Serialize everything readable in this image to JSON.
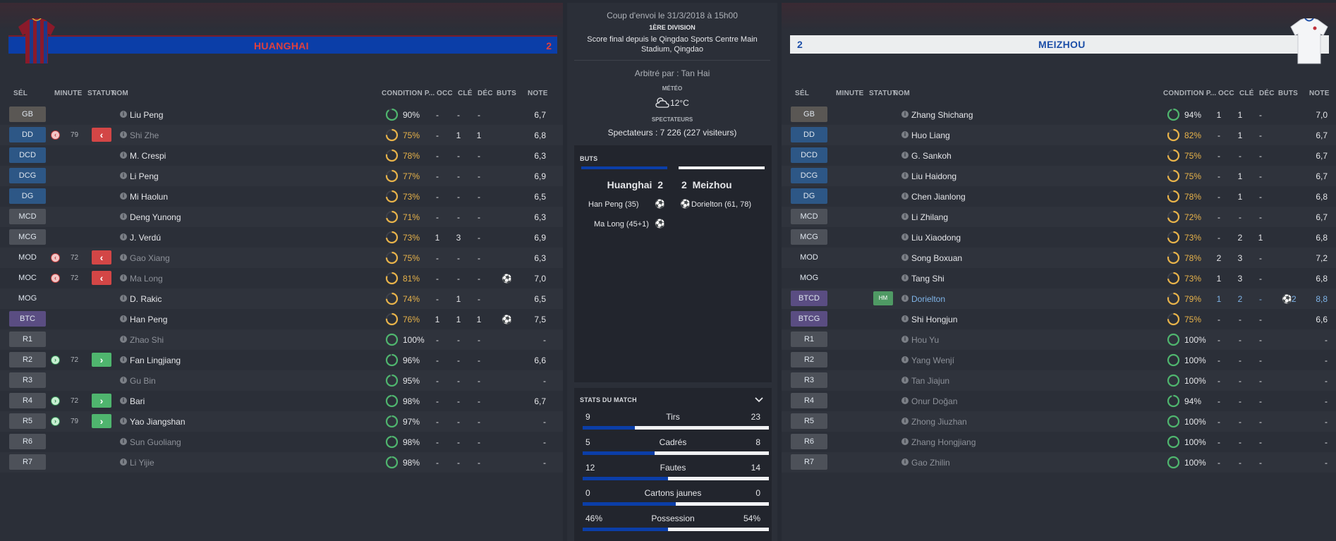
{
  "home": {
    "name": "HUANGHAI",
    "score": "2",
    "colors": {
      "bar": "#0b3ea8",
      "name": "#e0403d"
    },
    "columns": {
      "sel": "SÉL",
      "minute": "MINUTE",
      "statut": "STATUT",
      "nom": "NOM",
      "condition": "CONDITION P...",
      "occ": "OCC",
      "cle": "CLÉ",
      "dec": "DÉC",
      "buts": "BUTS",
      "note": "NOTE"
    },
    "players": [
      {
        "pos": "GB",
        "type": "gk",
        "name": "Liu Peng",
        "dim": false,
        "cond": "90%",
        "occ": "-",
        "cle": "-",
        "dec": "-",
        "buts": "",
        "note": "6,7"
      },
      {
        "pos": "DD",
        "type": "def",
        "name": "Shi Zhe",
        "dim": true,
        "sub": "off",
        "minute": "79",
        "cond": "75%",
        "occ": "-",
        "cle": "1",
        "dec": "1",
        "buts": "",
        "note": "6,8"
      },
      {
        "pos": "DCD",
        "type": "def",
        "name": "M. Crespi",
        "dim": false,
        "cond": "78%",
        "occ": "-",
        "cle": "-",
        "dec": "-",
        "buts": "",
        "note": "6,3"
      },
      {
        "pos": "DCG",
        "type": "def",
        "name": "Li Peng",
        "dim": false,
        "cond": "77%",
        "occ": "-",
        "cle": "-",
        "dec": "-",
        "buts": "",
        "note": "6,9"
      },
      {
        "pos": "DG",
        "type": "def",
        "name": "Mi Haolun",
        "dim": false,
        "cond": "73%",
        "occ": "-",
        "cle": "-",
        "dec": "-",
        "buts": "",
        "note": "6,5"
      },
      {
        "pos": "MCD",
        "type": "mid",
        "name": "Deng Yunong",
        "dim": false,
        "cond": "71%",
        "occ": "-",
        "cle": "-",
        "dec": "-",
        "buts": "",
        "note": "6,3"
      },
      {
        "pos": "MCG",
        "type": "mid",
        "name": "J. Verdú",
        "dim": false,
        "cond": "73%",
        "occ": "1",
        "cle": "3",
        "dec": "-",
        "buts": "",
        "note": "6,9"
      },
      {
        "pos": "MOD",
        "type": "none",
        "name": "Gao Xiang",
        "dim": true,
        "sub": "off",
        "minute": "72",
        "cond": "75%",
        "occ": "-",
        "cle": "-",
        "dec": "-",
        "buts": "",
        "note": "6,3"
      },
      {
        "pos": "MOC",
        "type": "none",
        "name": "Ma Long",
        "dim": true,
        "sub": "off",
        "minute": "72",
        "cond": "81%",
        "occ": "-",
        "cle": "-",
        "dec": "-",
        "buts": "ball",
        "note": "7,0"
      },
      {
        "pos": "MOG",
        "type": "none",
        "name": "D. Rakic",
        "dim": false,
        "cond": "74%",
        "occ": "-",
        "cle": "1",
        "dec": "-",
        "buts": "",
        "note": "6,5"
      },
      {
        "pos": "BTC",
        "type": "att",
        "name": "Han Peng",
        "dim": false,
        "cond": "76%",
        "occ": "1",
        "cle": "1",
        "dec": "1",
        "buts": "ball",
        "note": "7,5"
      },
      {
        "pos": "R1",
        "type": "res",
        "name": "Zhao Shi",
        "dim": true,
        "cond": "100%",
        "occ": "-",
        "cle": "-",
        "dec": "-",
        "buts": "",
        "note": "-"
      },
      {
        "pos": "R2",
        "type": "res",
        "name": "Fan Lingjiang",
        "dim": false,
        "sub": "on",
        "minute": "72",
        "cond": "96%",
        "occ": "-",
        "cle": "-",
        "dec": "-",
        "buts": "",
        "note": "6,6"
      },
      {
        "pos": "R3",
        "type": "res",
        "name": "Gu Bin",
        "dim": true,
        "cond": "95%",
        "occ": "-",
        "cle": "-",
        "dec": "-",
        "buts": "",
        "note": "-"
      },
      {
        "pos": "R4",
        "type": "res",
        "name": "Bari",
        "dim": false,
        "sub": "on",
        "minute": "72",
        "cond": "98%",
        "occ": "-",
        "cle": "-",
        "dec": "-",
        "buts": "",
        "note": "6,7"
      },
      {
        "pos": "R5",
        "type": "res",
        "name": "Yao Jiangshan",
        "dim": false,
        "sub": "on",
        "minute": "79",
        "cond": "97%",
        "occ": "-",
        "cle": "-",
        "dec": "-",
        "buts": "",
        "note": "-"
      },
      {
        "pos": "R6",
        "type": "res",
        "name": "Sun Guoliang",
        "dim": true,
        "cond": "98%",
        "occ": "-",
        "cle": "-",
        "dec": "-",
        "buts": "",
        "note": "-"
      },
      {
        "pos": "R7",
        "type": "res",
        "name": "Li Yijie",
        "dim": true,
        "cond": "98%",
        "occ": "-",
        "cle": "-",
        "dec": "-",
        "buts": "",
        "note": "-"
      }
    ]
  },
  "away": {
    "name": "MEIZHOU",
    "score": "2",
    "colors": {
      "bar": "#eceeef",
      "name": "#1d4fa8"
    },
    "columns": {
      "sel": "SÉL",
      "minute": "MINUTE",
      "statut": "STATUT",
      "nom": "NOM",
      "condition": "CONDITION P...",
      "occ": "OCC",
      "cle": "CLÉ",
      "dec": "DÉC",
      "buts": "BUTS",
      "note": "NOTE"
    },
    "players": [
      {
        "pos": "GB",
        "type": "gk",
        "name": "Zhang Shichang",
        "dim": false,
        "cond": "94%",
        "occ": "1",
        "cle": "1",
        "dec": "-",
        "buts": "",
        "note": "7,0"
      },
      {
        "pos": "DD",
        "type": "def",
        "name": "Huo Liang",
        "dim": false,
        "cond": "82%",
        "occ": "-",
        "cle": "1",
        "dec": "-",
        "buts": "",
        "note": "6,7"
      },
      {
        "pos": "DCD",
        "type": "def",
        "name": "G. Sankoh",
        "dim": false,
        "cond": "75%",
        "occ": "-",
        "cle": "-",
        "dec": "-",
        "buts": "",
        "note": "6,7"
      },
      {
        "pos": "DCG",
        "type": "def",
        "name": "Liu Haidong",
        "dim": false,
        "cond": "75%",
        "occ": "-",
        "cle": "1",
        "dec": "-",
        "buts": "",
        "note": "6,7"
      },
      {
        "pos": "DG",
        "type": "def",
        "name": "Chen Jianlong",
        "dim": false,
        "cond": "78%",
        "occ": "-",
        "cle": "1",
        "dec": "-",
        "buts": "",
        "note": "6,8"
      },
      {
        "pos": "MCD",
        "type": "mid",
        "name": "Li Zhilang",
        "dim": false,
        "cond": "72%",
        "occ": "-",
        "cle": "-",
        "dec": "-",
        "buts": "",
        "note": "6,7"
      },
      {
        "pos": "MCG",
        "type": "mid",
        "name": "Liu Xiaodong",
        "dim": false,
        "cond": "73%",
        "occ": "-",
        "cle": "2",
        "dec": "1",
        "buts": "",
        "note": "6,8"
      },
      {
        "pos": "MOD",
        "type": "none",
        "name": "Song Boxuan",
        "dim": false,
        "cond": "78%",
        "occ": "2",
        "cle": "3",
        "dec": "-",
        "buts": "",
        "note": "7,2"
      },
      {
        "pos": "MOG",
        "type": "none",
        "name": "Tang Shi",
        "dim": false,
        "cond": "73%",
        "occ": "1",
        "cle": "3",
        "dec": "-",
        "buts": "",
        "note": "6,8"
      },
      {
        "pos": "BTCD",
        "type": "att",
        "name": "Dorielton",
        "dim": false,
        "hl": true,
        "hm": "HM",
        "cond": "79%",
        "occ": "1",
        "cle": "2",
        "dec": "-",
        "buts": "ball2",
        "buts_count": "2",
        "note": "8,8"
      },
      {
        "pos": "BTCG",
        "type": "att",
        "name": "Shi Hongjun",
        "dim": false,
        "cond": "75%",
        "occ": "-",
        "cle": "-",
        "dec": "-",
        "buts": "",
        "note": "6,6"
      },
      {
        "pos": "R1",
        "type": "res",
        "name": "Hou Yu",
        "dim": true,
        "cond": "100%",
        "occ": "-",
        "cle": "-",
        "dec": "-",
        "buts": "",
        "note": "-"
      },
      {
        "pos": "R2",
        "type": "res",
        "name": "Yang Wenjí",
        "dim": true,
        "cond": "100%",
        "occ": "-",
        "cle": "-",
        "dec": "-",
        "buts": "",
        "note": "-"
      },
      {
        "pos": "R3",
        "type": "res",
        "name": "Tan Jiajun",
        "dim": true,
        "cond": "100%",
        "occ": "-",
        "cle": "-",
        "dec": "-",
        "buts": "",
        "note": "-"
      },
      {
        "pos": "R4",
        "type": "res",
        "name": "Onur Doğan",
        "dim": true,
        "cond": "94%",
        "occ": "-",
        "cle": "-",
        "dec": "-",
        "buts": "",
        "note": "-"
      },
      {
        "pos": "R5",
        "type": "res",
        "name": "Zhong Jiuzhan",
        "dim": true,
        "cond": "100%",
        "occ": "-",
        "cle": "-",
        "dec": "-",
        "buts": "",
        "note": "-"
      },
      {
        "pos": "R6",
        "type": "res",
        "name": "Zhang Hongjiang",
        "dim": true,
        "cond": "100%",
        "occ": "-",
        "cle": "-",
        "dec": "-",
        "buts": "",
        "note": "-"
      },
      {
        "pos": "R7",
        "type": "res",
        "name": "Gao Zhilin",
        "dim": true,
        "cond": "100%",
        "occ": "-",
        "cle": "-",
        "dec": "-",
        "buts": "",
        "note": "-"
      }
    ]
  },
  "center": {
    "kickoff": "Coup d'envoi le 31/3/2018 à 15h00",
    "division": "1ÈRE DIVISION",
    "venue": "Score final depuis le Qingdao Sports Centre Main Stadium, Qingdao",
    "referee": "Arbitré par : Tan Hai",
    "weather_label": "MÉTÉO",
    "weather_value": "12°C",
    "weather_icon": "partly-cloudy-icon",
    "spectators_label": "SPECTATEURS",
    "spectators_value": "Spectateurs : 7 226 (227 visiteurs)"
  },
  "goals": {
    "heading": "BUTS",
    "home_team": "Huanghai",
    "home_score": "2",
    "away_team": "Meizhou",
    "away_score": "2",
    "home_scorers": [
      "Han Peng (35)",
      "Ma Long (45+1)"
    ],
    "away_scorers": [
      "Dorielton (61, 78)"
    ]
  },
  "match_stats": {
    "heading": "STATS DU MATCH",
    "rows": [
      {
        "label": "Tirs",
        "home": "9",
        "away": "23",
        "home_frac": 0.28
      },
      {
        "label": "Cadrés",
        "home": "5",
        "away": "8",
        "home_frac": 0.385
      },
      {
        "label": "Fautes",
        "home": "12",
        "away": "14",
        "home_frac": 0.46
      },
      {
        "label": "Cartons jaunes",
        "home": "0",
        "away": "0",
        "home_frac": 0.5
      },
      {
        "label": "Possession",
        "home": "46%",
        "away": "54%",
        "home_frac": 0.46
      }
    ]
  }
}
